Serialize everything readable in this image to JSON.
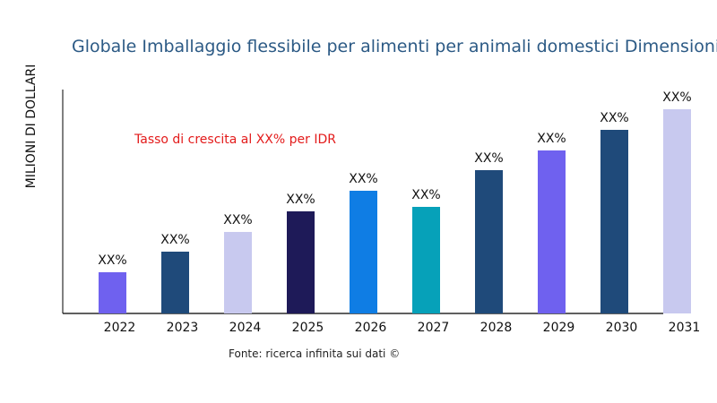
{
  "chart_data": {
    "type": "bar",
    "title": "Globale Imballaggio flessibile per alimenti per animali domestici Dimensioni e",
    "xlabel": "",
    "ylabel": "MILIONI DI DOLLARI",
    "categories": [
      "2022",
      "2023",
      "2024",
      "2025",
      "2026",
      "2027",
      "2028",
      "2029",
      "2030",
      "2031"
    ],
    "values": [
      46,
      69,
      91,
      114,
      137,
      119,
      160,
      182,
      205,
      228
    ],
    "data_labels": [
      "XX%",
      "XX%",
      "XX%",
      "XX%",
      "XX%",
      "XX%",
      "XX%",
      "XX%",
      "XX%",
      "XX%"
    ],
    "bar_colors": [
      "#6f61ef",
      "#1f4a7a",
      "#c8c9ef",
      "#1e1a58",
      "#0f7de4",
      "#06a1b9",
      "#1f4a7a",
      "#6f61ef",
      "#1f4a7a",
      "#c8c9ef"
    ],
    "ylim": [
      0,
      250
    ],
    "grid": false,
    "annotation": "Tasso di crescita al XX% per IDR",
    "annotation_color": "#e31b1b",
    "source": "Fonte: ricerca infinita sui dati ©"
  }
}
